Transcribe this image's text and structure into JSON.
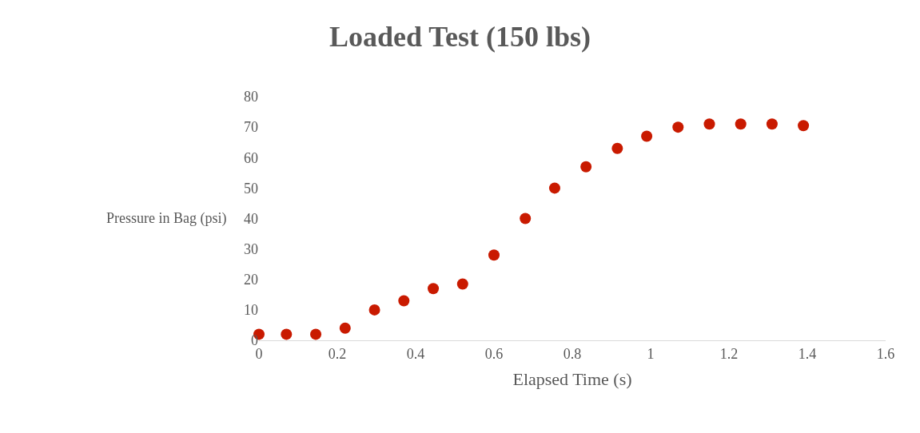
{
  "chart_data": {
    "type": "scatter",
    "title": "Loaded Test (150 lbs)",
    "xlabel": "Elapsed Time (s)",
    "ylabel": "Pressure in Bag (psi)",
    "x": [
      0,
      0.07,
      0.145,
      0.22,
      0.295,
      0.37,
      0.445,
      0.52,
      0.6,
      0.68,
      0.755,
      0.835,
      0.915,
      0.99,
      1.07,
      1.15,
      1.23,
      1.31,
      1.39
    ],
    "series": [
      {
        "color": "#c91a00",
        "values": [
          2,
          2,
          2,
          4,
          10,
          13,
          17,
          18.5,
          28,
          40,
          50,
          57,
          63,
          67,
          70,
          71,
          71,
          71,
          70.5
        ]
      }
    ],
    "xlim": [
      0,
      1.6
    ],
    "xticks": [
      0,
      0.2,
      0.4,
      0.6,
      0.8,
      1,
      1.2,
      1.4,
      1.6
    ],
    "ylim": [
      0,
      80
    ],
    "yticks": [
      0,
      10,
      20,
      30,
      40,
      50,
      60,
      70,
      80
    ],
    "marker": "circle"
  }
}
